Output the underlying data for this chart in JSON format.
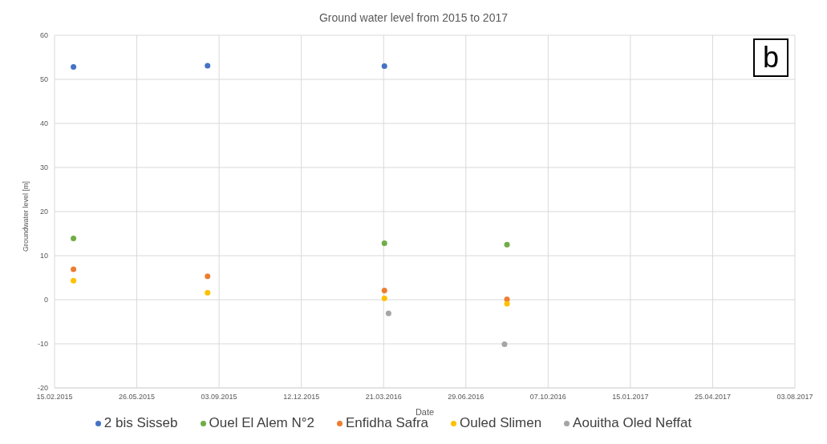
{
  "chart_data": {
    "type": "scatter",
    "title": "Ground water level from 2015 to 2017",
    "xlabel": "Date",
    "ylabel": "Groundwater level [m]",
    "annotations": [
      "b"
    ],
    "xlim": [
      "2015-02-15",
      "2017-08-03"
    ],
    "xticks": [
      {
        "value": "2015-02-15",
        "label": "15.02.2015"
      },
      {
        "value": "2015-05-26",
        "label": "26.05.2015"
      },
      {
        "value": "2015-09-03",
        "label": "03.09.2015"
      },
      {
        "value": "2015-12-12",
        "label": "12.12.2015"
      },
      {
        "value": "2016-03-21",
        "label": "21.03.2016"
      },
      {
        "value": "2016-06-29",
        "label": "29.06.2016"
      },
      {
        "value": "2016-10-07",
        "label": "07.10.2016"
      },
      {
        "value": "2017-01-15",
        "label": "15.01.2017"
      },
      {
        "value": "2017-04-25",
        "label": "25.04.2017"
      },
      {
        "value": "2017-08-03",
        "label": "03.08.2017"
      }
    ],
    "ylim": [
      -20,
      60
    ],
    "yticks": [
      -20,
      -10,
      0,
      10,
      20,
      30,
      40,
      50,
      60
    ],
    "grid": true,
    "legend": "bottom",
    "marker": "circle",
    "series": [
      {
        "name": "2 bis Sisseb",
        "color": "#4472c4",
        "x": [
          "2015-03-10",
          "2015-08-20",
          "2016-03-22"
        ],
        "values": [
          52.8,
          53.1,
          53.0
        ]
      },
      {
        "name": "Ouel El Alem N°2",
        "color": "#70ad47",
        "x": [
          "2015-03-10",
          "2016-03-22",
          "2016-08-18"
        ],
        "values": [
          13.9,
          12.8,
          12.5
        ]
      },
      {
        "name": "Enfidha Safra",
        "color": "#ed7d31",
        "x": [
          "2015-03-10",
          "2015-08-20",
          "2016-03-22",
          "2016-08-18"
        ],
        "values": [
          6.9,
          5.3,
          2.1,
          0.1
        ]
      },
      {
        "name": "Ouled Slimen",
        "color": "#ffc000",
        "x": [
          "2015-03-10",
          "2015-08-20",
          "2016-03-22",
          "2016-08-18"
        ],
        "values": [
          4.3,
          1.6,
          0.3,
          -0.9
        ]
      },
      {
        "name": "Aouitha Oled Neffat",
        "color": "#a5a5a5",
        "x": [
          "2016-03-27",
          "2016-08-15"
        ],
        "values": [
          -3.1,
          -10.1
        ]
      }
    ]
  }
}
